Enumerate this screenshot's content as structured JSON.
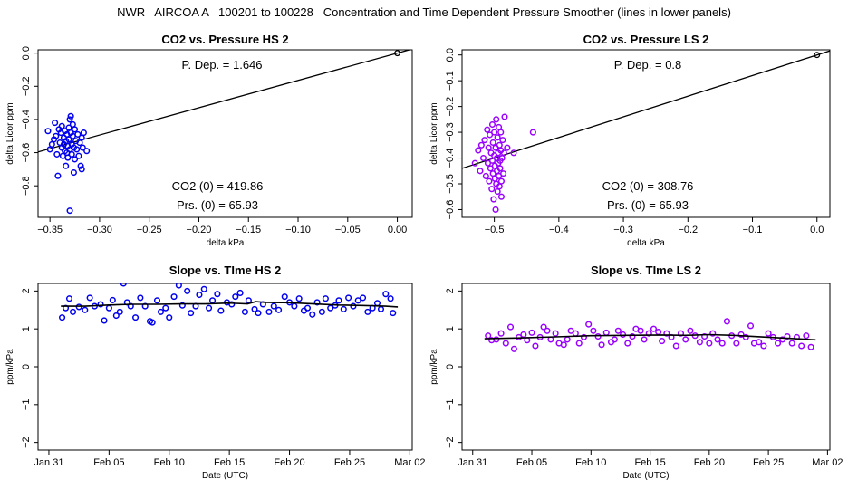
{
  "figure_title": "NWR   AIRCOA A   100201 to 100228   Concentration and Time Dependent Pressure Smoother (lines in lower panels)",
  "chart_data": [
    {
      "id": "hs-scatter",
      "type": "scatter",
      "title": "CO2 vs. Pressure HS 2",
      "xlabel": "delta kPa",
      "ylabel": "delta Licor ppm",
      "xlim": [
        -0.362,
        0.015
      ],
      "ylim": [
        -0.99,
        0.02
      ],
      "xticks": [
        -0.35,
        -0.3,
        -0.25,
        -0.2,
        -0.15,
        -0.1,
        -0.05,
        0.0
      ],
      "xtick_labels": [
        "−0.35",
        "−0.30",
        "−0.25",
        "−0.20",
        "−0.15",
        "−0.10",
        "−0.05",
        "0.00"
      ],
      "yticks": [
        0.0,
        -0.2,
        -0.4,
        -0.6,
        -0.8
      ],
      "ytick_labels": [
        "0.0",
        "−0.2",
        "−0.4",
        "−0.6",
        "−0.8"
      ],
      "color": "#0000ee",
      "line": {
        "slope": 1.646,
        "intercept": 0.0
      },
      "origin_point": [
        0.0,
        0.0
      ],
      "annotations": {
        "p_dep": "P. Dep. =  1.646",
        "co2_0": "CO2 (0) =  419.86",
        "prs_0": "Prs. (0) =  65.93"
      },
      "points": [
        [
          -0.352,
          -0.47
        ],
        [
          -0.35,
          -0.58
        ],
        [
          -0.348,
          -0.55
        ],
        [
          -0.346,
          -0.52
        ],
        [
          -0.345,
          -0.42
        ],
        [
          -0.344,
          -0.5
        ],
        [
          -0.343,
          -0.61
        ],
        [
          -0.342,
          -0.74
        ],
        [
          -0.341,
          -0.46
        ],
        [
          -0.34,
          -0.54
        ],
        [
          -0.339,
          -0.48
        ],
        [
          -0.338,
          -0.57
        ],
        [
          -0.338,
          -0.44
        ],
        [
          -0.337,
          -0.62
        ],
        [
          -0.336,
          -0.51
        ],
        [
          -0.336,
          -0.55
        ],
        [
          -0.335,
          -0.59
        ],
        [
          -0.335,
          -0.47
        ],
        [
          -0.334,
          -0.68
        ],
        [
          -0.334,
          -0.53
        ],
        [
          -0.333,
          -0.6
        ],
        [
          -0.333,
          -0.49
        ],
        [
          -0.332,
          -0.56
        ],
        [
          -0.332,
          -0.63
        ],
        [
          -0.331,
          -0.45
        ],
        [
          -0.331,
          -0.52
        ],
        [
          -0.33,
          -0.4
        ],
        [
          -0.33,
          -0.58
        ],
        [
          -0.33,
          -0.95
        ],
        [
          -0.329,
          -0.38
        ],
        [
          -0.329,
          -0.48
        ],
        [
          -0.328,
          -0.55
        ],
        [
          -0.328,
          -0.61
        ],
        [
          -0.327,
          -0.5
        ],
        [
          -0.327,
          -0.43
        ],
        [
          -0.326,
          -0.72
        ],
        [
          -0.326,
          -0.57
        ],
        [
          -0.325,
          -0.46
        ],
        [
          -0.325,
          -0.64
        ],
        [
          -0.324,
          -0.53
        ],
        [
          -0.323,
          -0.58
        ],
        [
          -0.322,
          -0.49
        ],
        [
          -0.321,
          -0.62
        ],
        [
          -0.32,
          -0.54
        ],
        [
          -0.319,
          -0.68
        ],
        [
          -0.318,
          -0.51
        ],
        [
          -0.318,
          -0.7
        ],
        [
          -0.317,
          -0.57
        ],
        [
          -0.316,
          -0.48
        ],
        [
          -0.313,
          -0.59
        ]
      ]
    },
    {
      "id": "ls-scatter",
      "type": "scatter",
      "title": "CO2 vs. Pressure LS 2",
      "xlabel": "delta kPa",
      "ylabel": "delta Licor ppm",
      "xlim": [
        -0.55,
        0.02
      ],
      "ylim": [
        -0.63,
        0.02
      ],
      "xticks": [
        -0.5,
        -0.4,
        -0.3,
        -0.2,
        -0.1,
        0.0
      ],
      "xtick_labels": [
        "−0.5",
        "−0.4",
        "−0.3",
        "−0.2",
        "−0.1",
        "0.0"
      ],
      "yticks": [
        0.0,
        -0.1,
        -0.2,
        -0.3,
        -0.4,
        -0.5,
        -0.6
      ],
      "ytick_labels": [
        "0.0",
        "−0.1",
        "−0.2",
        "−0.3",
        "−0.4",
        "−0.5",
        "−0.6"
      ],
      "color": "#9900ff",
      "line": {
        "slope": 0.8,
        "intercept": 0.0
      },
      "origin_point": [
        0.0,
        0.0
      ],
      "annotations": {
        "p_dep": "P. Dep. =  0.8",
        "co2_0": "CO2 (0) =  308.76",
        "prs_0": "Prs. (0) =  65.93"
      },
      "points": [
        [
          -0.53,
          -0.42
        ],
        [
          -0.525,
          -0.37
        ],
        [
          -0.522,
          -0.45
        ],
        [
          -0.52,
          -0.35
        ],
        [
          -0.517,
          -0.4
        ],
        [
          -0.515,
          -0.33
        ],
        [
          -0.513,
          -0.47
        ],
        [
          -0.511,
          -0.29
        ],
        [
          -0.51,
          -0.42
        ],
        [
          -0.509,
          -0.36
        ],
        [
          -0.508,
          -0.49
        ],
        [
          -0.507,
          -0.31
        ],
        [
          -0.506,
          -0.44
        ],
        [
          -0.505,
          -0.38
        ],
        [
          -0.504,
          -0.52
        ],
        [
          -0.503,
          -0.27
        ],
        [
          -0.503,
          -0.41
        ],
        [
          -0.502,
          -0.46
        ],
        [
          -0.502,
          -0.34
        ],
        [
          -0.501,
          -0.56
        ],
        [
          -0.5,
          -0.39
        ],
        [
          -0.5,
          -0.3
        ],
        [
          -0.499,
          -0.48
        ],
        [
          -0.499,
          -0.43
        ],
        [
          -0.498,
          -0.6
        ],
        [
          -0.498,
          -0.36
        ],
        [
          -0.497,
          -0.25
        ],
        [
          -0.497,
          -0.5
        ],
        [
          -0.496,
          -0.4
        ],
        [
          -0.496,
          -0.45
        ],
        [
          -0.495,
          -0.32
        ],
        [
          -0.495,
          -0.53
        ],
        [
          -0.494,
          -0.38
        ],
        [
          -0.494,
          -0.42
        ],
        [
          -0.493,
          -0.28
        ],
        [
          -0.493,
          -0.47
        ],
        [
          -0.492,
          -0.35
        ],
        [
          -0.492,
          -0.51
        ],
        [
          -0.491,
          -0.41
        ],
        [
          -0.491,
          -0.44
        ],
        [
          -0.49,
          -0.37
        ],
        [
          -0.49,
          -0.3
        ],
        [
          -0.489,
          -0.49
        ],
        [
          -0.489,
          -0.55
        ],
        [
          -0.488,
          -0.4
        ],
        [
          -0.487,
          -0.33
        ],
        [
          -0.486,
          -0.46
        ],
        [
          -0.485,
          -0.38
        ],
        [
          -0.484,
          -0.24
        ],
        [
          -0.48,
          -0.36
        ],
        [
          -0.47,
          -0.38
        ],
        [
          -0.44,
          -0.3
        ]
      ]
    },
    {
      "id": "hs-slope",
      "type": "scatter",
      "title": "Slope vs. TIme HS 2",
      "xlabel": "Date (UTC)",
      "ylabel": "ppm/kPa",
      "xlim": [
        -0.9,
        30.2
      ],
      "ylim": [
        -2.2,
        2.2
      ],
      "xticks": [
        0,
        5,
        10,
        15,
        20,
        25,
        30
      ],
      "xtick_labels": [
        "Jan 31",
        "Feb 05",
        "Feb 10",
        "Feb 15",
        "Feb 20",
        "Feb 25",
        "Mar 02"
      ],
      "yticks": [
        -2,
        -1,
        0,
        1,
        2
      ],
      "ytick_labels": [
        "−2",
        "−1",
        "0",
        "1",
        "2"
      ],
      "color": "#0000ee",
      "smoother": [
        [
          1.0,
          1.6
        ],
        [
          3.0,
          1.6
        ],
        [
          5.0,
          1.63
        ],
        [
          7.0,
          1.65
        ],
        [
          9.0,
          1.65
        ],
        [
          11.0,
          1.66
        ],
        [
          13.0,
          1.66
        ],
        [
          15.0,
          1.68
        ],
        [
          16.5,
          1.66
        ],
        [
          17.2,
          1.72
        ],
        [
          18.0,
          1.7
        ],
        [
          20.0,
          1.69
        ],
        [
          22.0,
          1.66
        ],
        [
          24.0,
          1.63
        ],
        [
          26.0,
          1.62
        ],
        [
          28.0,
          1.6
        ],
        [
          29.0,
          1.58
        ]
      ],
      "points": [
        [
          1.1,
          1.3
        ],
        [
          1.4,
          1.55
        ],
        [
          1.7,
          1.8
        ],
        [
          2.0,
          1.45
        ],
        [
          2.5,
          1.58
        ],
        [
          3.0,
          1.5
        ],
        [
          3.4,
          1.82
        ],
        [
          3.8,
          1.6
        ],
        [
          4.3,
          1.65
        ],
        [
          4.6,
          1.22
        ],
        [
          5.0,
          1.55
        ],
        [
          5.3,
          1.76
        ],
        [
          5.6,
          1.35
        ],
        [
          5.9,
          1.45
        ],
        [
          6.2,
          2.2
        ],
        [
          6.5,
          1.7
        ],
        [
          6.8,
          1.6
        ],
        [
          7.2,
          1.3
        ],
        [
          7.6,
          1.82
        ],
        [
          8.0,
          1.6
        ],
        [
          8.4,
          1.2
        ],
        [
          8.6,
          1.17
        ],
        [
          9.0,
          1.75
        ],
        [
          9.3,
          1.45
        ],
        [
          9.7,
          1.55
        ],
        [
          10.0,
          1.3
        ],
        [
          10.4,
          1.85
        ],
        [
          10.8,
          2.15
        ],
        [
          11.1,
          1.62
        ],
        [
          11.5,
          2.0
        ],
        [
          11.8,
          1.42
        ],
        [
          12.2,
          1.6
        ],
        [
          12.5,
          1.9
        ],
        [
          12.9,
          2.05
        ],
        [
          13.3,
          1.55
        ],
        [
          13.6,
          1.75
        ],
        [
          14.0,
          1.92
        ],
        [
          14.3,
          1.48
        ],
        [
          14.8,
          1.7
        ],
        [
          15.2,
          1.65
        ],
        [
          15.5,
          1.85
        ],
        [
          15.9,
          1.95
        ],
        [
          16.3,
          1.45
        ],
        [
          16.6,
          1.75
        ],
        [
          17.1,
          1.52
        ],
        [
          17.4,
          1.42
        ],
        [
          17.8,
          1.65
        ],
        [
          18.3,
          1.45
        ],
        [
          18.7,
          1.6
        ],
        [
          19.1,
          1.5
        ],
        [
          19.6,
          1.85
        ],
        [
          20.0,
          1.7
        ],
        [
          20.4,
          1.6
        ],
        [
          20.8,
          1.8
        ],
        [
          21.2,
          1.48
        ],
        [
          21.5,
          1.55
        ],
        [
          21.9,
          1.38
        ],
        [
          22.3,
          1.7
        ],
        [
          22.7,
          1.45
        ],
        [
          23.0,
          1.8
        ],
        [
          23.4,
          1.55
        ],
        [
          23.8,
          1.62
        ],
        [
          24.1,
          1.75
        ],
        [
          24.5,
          1.52
        ],
        [
          24.9,
          1.82
        ],
        [
          25.3,
          1.6
        ],
        [
          25.7,
          1.75
        ],
        [
          26.1,
          1.82
        ],
        [
          26.5,
          1.45
        ],
        [
          26.9,
          1.55
        ],
        [
          27.3,
          1.68
        ],
        [
          27.6,
          1.52
        ],
        [
          28.0,
          1.92
        ],
        [
          28.4,
          1.8
        ],
        [
          28.6,
          1.42
        ]
      ]
    },
    {
      "id": "ls-slope",
      "type": "scatter",
      "title": "Slope vs. TIme LS 2",
      "xlabel": "Date (UTC)",
      "ylabel": "ppm/kPa",
      "xlim": [
        -0.9,
        30.2
      ],
      "ylim": [
        -2.2,
        2.2
      ],
      "xticks": [
        0,
        5,
        10,
        15,
        20,
        25,
        30
      ],
      "xtick_labels": [
        "Jan 31",
        "Feb 05",
        "Feb 10",
        "Feb 15",
        "Feb 20",
        "Feb 25",
        "Mar 02"
      ],
      "yticks": [
        -2,
        -1,
        0,
        1,
        2
      ],
      "ytick_labels": [
        "−2",
        "−1",
        "0",
        "1",
        "2"
      ],
      "color": "#9900ff",
      "smoother": [
        [
          1.0,
          0.74
        ],
        [
          4.0,
          0.76
        ],
        [
          7.0,
          0.79
        ],
        [
          10.0,
          0.82
        ],
        [
          13.0,
          0.83
        ],
        [
          16.0,
          0.84
        ],
        [
          18.0,
          0.83
        ],
        [
          20.0,
          0.85
        ],
        [
          22.0,
          0.83
        ],
        [
          25.0,
          0.78
        ],
        [
          29.0,
          0.71
        ]
      ],
      "points": [
        [
          1.3,
          0.82
        ],
        [
          1.6,
          0.7
        ],
        [
          2.0,
          0.72
        ],
        [
          2.4,
          0.88
        ],
        [
          2.8,
          0.62
        ],
        [
          3.2,
          1.05
        ],
        [
          3.5,
          0.47
        ],
        [
          3.9,
          0.78
        ],
        [
          4.3,
          0.85
        ],
        [
          4.6,
          0.7
        ],
        [
          5.0,
          0.9
        ],
        [
          5.3,
          0.55
        ],
        [
          5.7,
          0.78
        ],
        [
          6.0,
          1.05
        ],
        [
          6.3,
          0.95
        ],
        [
          6.6,
          0.72
        ],
        [
          7.0,
          0.88
        ],
        [
          7.3,
          0.62
        ],
        [
          7.7,
          0.58
        ],
        [
          8.0,
          0.72
        ],
        [
          8.3,
          0.95
        ],
        [
          8.7,
          0.88
        ],
        [
          9.0,
          0.62
        ],
        [
          9.4,
          0.78
        ],
        [
          9.8,
          1.12
        ],
        [
          10.2,
          0.95
        ],
        [
          10.6,
          0.8
        ],
        [
          10.9,
          0.58
        ],
        [
          11.3,
          0.9
        ],
        [
          11.7,
          0.65
        ],
        [
          12.0,
          0.72
        ],
        [
          12.3,
          0.95
        ],
        [
          12.7,
          0.85
        ],
        [
          13.1,
          0.62
        ],
        [
          13.5,
          0.8
        ],
        [
          13.8,
          1.0
        ],
        [
          14.2,
          0.95
        ],
        [
          14.5,
          0.72
        ],
        [
          14.9,
          0.88
        ],
        [
          15.3,
          1.0
        ],
        [
          15.7,
          0.92
        ],
        [
          16.0,
          0.68
        ],
        [
          16.4,
          0.88
        ],
        [
          16.8,
          0.78
        ],
        [
          17.2,
          0.55
        ],
        [
          17.6,
          0.88
        ],
        [
          18.0,
          0.72
        ],
        [
          18.4,
          0.95
        ],
        [
          18.8,
          0.82
        ],
        [
          19.2,
          0.65
        ],
        [
          19.6,
          0.8
        ],
        [
          20.0,
          0.62
        ],
        [
          20.3,
          0.88
        ],
        [
          20.7,
          0.72
        ],
        [
          21.1,
          0.62
        ],
        [
          21.5,
          1.2
        ],
        [
          21.9,
          0.82
        ],
        [
          22.3,
          0.62
        ],
        [
          22.7,
          0.85
        ],
        [
          23.1,
          0.78
        ],
        [
          23.5,
          1.08
        ],
        [
          23.8,
          0.62
        ],
        [
          24.2,
          0.65
        ],
        [
          24.6,
          0.55
        ],
        [
          25.0,
          0.88
        ],
        [
          25.4,
          0.78
        ],
        [
          25.8,
          0.62
        ],
        [
          26.2,
          0.72
        ],
        [
          26.6,
          0.8
        ],
        [
          27.0,
          0.62
        ],
        [
          27.4,
          0.78
        ],
        [
          27.8,
          0.55
        ],
        [
          28.2,
          0.82
        ],
        [
          28.6,
          0.52
        ]
      ]
    }
  ]
}
